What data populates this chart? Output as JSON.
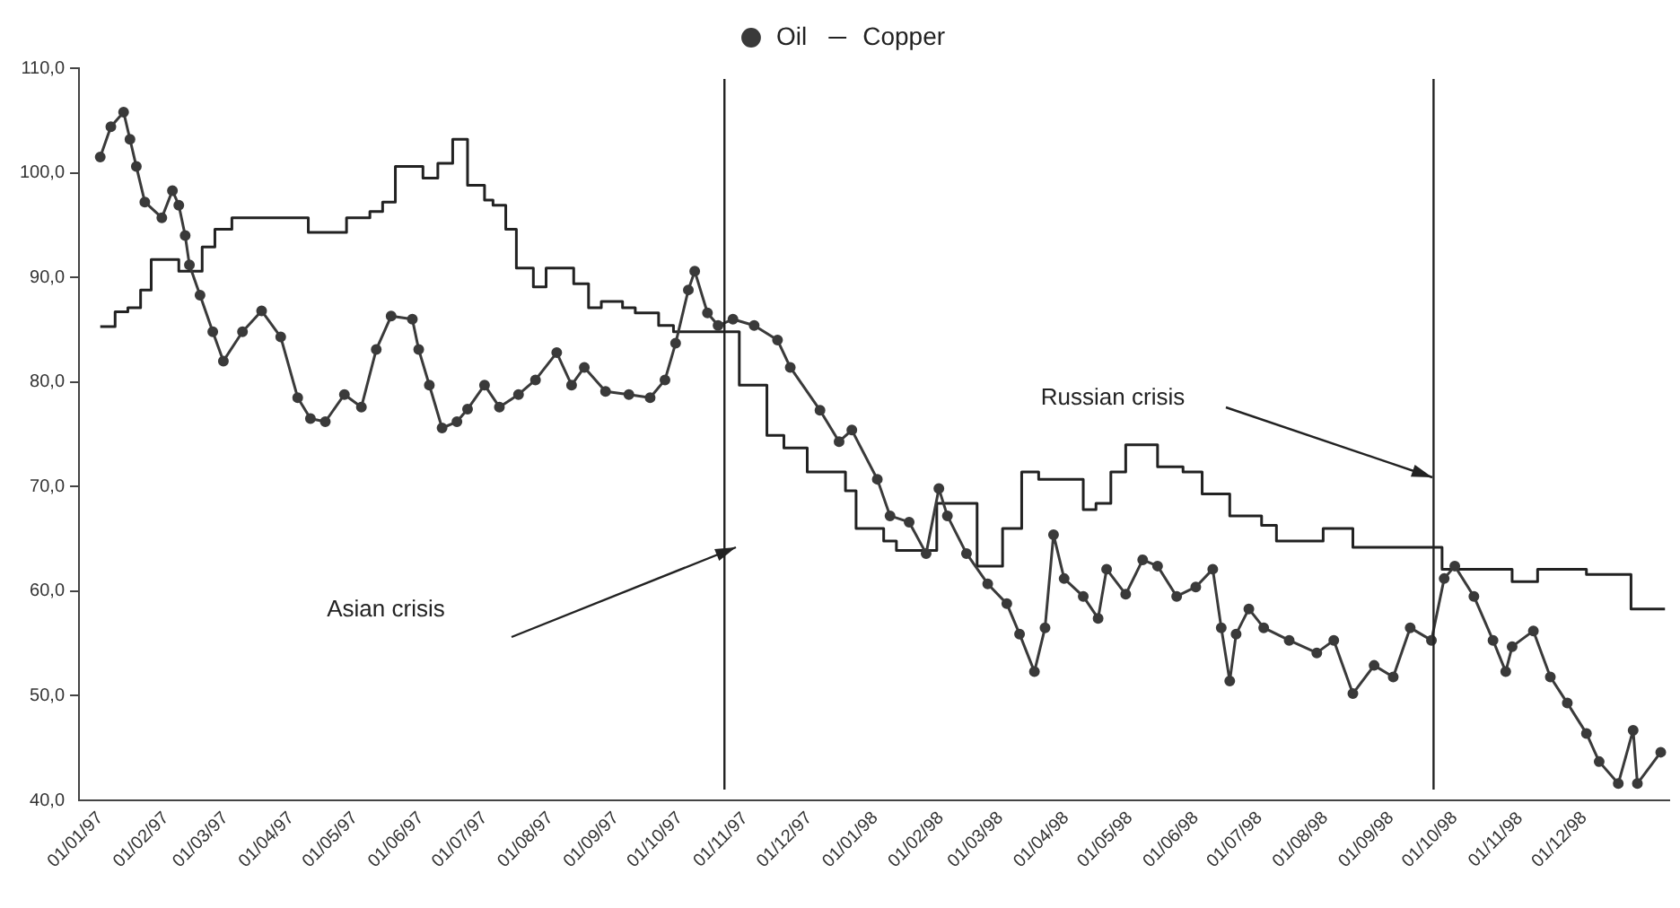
{
  "chart_data": {
    "type": "line",
    "legend": "top",
    "grid": false,
    "xlim": [
      "1997-01-01",
      "1999-01-20"
    ],
    "xticks": [
      {
        "value": "1997-01-01",
        "label": "01/01/97"
      },
      {
        "value": "1997-02-01",
        "label": "01/02/97"
      },
      {
        "value": "1997-03-01",
        "label": "01/03/97"
      },
      {
        "value": "1997-04-01",
        "label": "01/04/97"
      },
      {
        "value": "1997-05-01",
        "label": "01/05/97"
      },
      {
        "value": "1997-06-01",
        "label": "01/06/97"
      },
      {
        "value": "1997-07-01",
        "label": "01/07/97"
      },
      {
        "value": "1997-08-01",
        "label": "01/08/97"
      },
      {
        "value": "1997-09-01",
        "label": "01/09/97"
      },
      {
        "value": "1997-10-01",
        "label": "01/10/97"
      },
      {
        "value": "1997-11-01",
        "label": "01/11/97"
      },
      {
        "value": "1997-12-01",
        "label": "01/12/97"
      },
      {
        "value": "1998-01-01",
        "label": "01/01/98"
      },
      {
        "value": "1998-02-01",
        "label": "01/02/98"
      },
      {
        "value": "1998-03-01",
        "label": "01/03/98"
      },
      {
        "value": "1998-04-01",
        "label": "01/04/98"
      },
      {
        "value": "1998-05-01",
        "label": "01/05/98"
      },
      {
        "value": "1998-06-01",
        "label": "01/06/98"
      },
      {
        "value": "1998-07-01",
        "label": "01/07/98"
      },
      {
        "value": "1998-08-01",
        "label": "01/08/98"
      },
      {
        "value": "1998-09-01",
        "label": "01/09/98"
      },
      {
        "value": "1998-10-01",
        "label": "01/10/98"
      },
      {
        "value": "1998-11-01",
        "label": "01/11/98"
      },
      {
        "value": "1998-12-01",
        "label": "01/12/98"
      }
    ],
    "ylim": [
      40,
      110
    ],
    "yticks": [
      {
        "value": 40,
        "label": "40,0"
      },
      {
        "value": 50,
        "label": "50,0"
      },
      {
        "value": 60,
        "label": "60,0"
      },
      {
        "value": 70,
        "label": "70,0"
      },
      {
        "value": 80,
        "label": "80,0"
      },
      {
        "value": 90,
        "label": "90,0"
      },
      {
        "value": 100,
        "label": "100,0"
      },
      {
        "value": 110,
        "label": "110,0"
      }
    ],
    "ref_lines": [
      {
        "axis": "x",
        "value": "1997-11-01",
        "color": "#222222"
      },
      {
        "axis": "x",
        "value": "1998-10-01",
        "color": "#222222"
      }
    ],
    "annotations": [
      "Asian crisis",
      "Russian crisis"
    ],
    "series": [
      {
        "name": "Oil",
        "marker": "circle",
        "color": "#3a3a3a",
        "x": [
          "1997-01-11",
          "1997-01-16",
          "1997-01-22",
          "1997-01-25",
          "1997-01-28",
          "1997-02-01",
          "1997-02-09",
          "1997-02-14",
          "1997-02-17",
          "1997-02-20",
          "1997-02-22",
          "1997-02-27",
          "1997-03-05",
          "1997-03-10",
          "1997-03-19",
          "1997-03-28",
          "1997-04-06",
          "1997-04-14",
          "1997-04-20",
          "1997-04-27",
          "1997-05-06",
          "1997-05-14",
          "1997-05-21",
          "1997-05-28",
          "1997-06-07",
          "1997-06-10",
          "1997-06-15",
          "1997-06-21",
          "1997-06-28",
          "1997-07-03",
          "1997-07-11",
          "1997-07-18",
          "1997-07-27",
          "1997-08-04",
          "1997-08-14",
          "1997-08-21",
          "1997-08-27",
          "1997-09-06",
          "1997-09-17",
          "1997-09-27",
          "1997-10-04",
          "1997-10-09",
          "1997-10-15",
          "1997-10-18",
          "1997-10-24",
          "1997-10-29",
          "1997-11-05",
          "1997-11-15",
          "1997-11-26",
          "1997-12-02",
          "1997-12-16",
          "1997-12-25",
          "1997-12-31",
          "1998-01-12",
          "1998-01-18",
          "1998-01-27",
          "1998-02-04",
          "1998-02-10",
          "1998-02-14",
          "1998-02-23",
          "1998-03-05",
          "1998-03-14",
          "1998-03-20",
          "1998-03-27",
          "1998-04-01",
          "1998-04-05",
          "1998-04-10",
          "1998-04-19",
          "1998-04-26",
          "1998-04-30",
          "1998-05-09",
          "1998-05-17",
          "1998-05-24",
          "1998-06-02",
          "1998-06-11",
          "1998-06-19",
          "1998-06-23",
          "1998-06-27",
          "1998-06-30",
          "1998-07-06",
          "1998-07-13",
          "1998-07-25",
          "1998-08-07",
          "1998-08-15",
          "1998-08-24",
          "1998-09-03",
          "1998-09-12",
          "1998-09-20",
          "1998-09-30",
          "1998-10-06",
          "1998-10-11",
          "1998-10-20",
          "1998-10-29",
          "1998-11-04",
          "1998-11-07",
          "1998-11-17",
          "1998-11-25",
          "1998-12-03",
          "1998-12-12",
          "1998-12-18",
          "1998-12-27",
          "1999-01-03",
          "1999-01-05",
          "1999-01-16"
        ],
        "values": [
          101.5,
          104.4,
          105.8,
          103.2,
          100.6,
          97.2,
          95.7,
          98.3,
          96.9,
          94,
          91.2,
          88.3,
          84.8,
          82,
          84.8,
          86.8,
          84.3,
          78.5,
          76.5,
          76.2,
          78.8,
          77.6,
          83.1,
          86.3,
          86,
          83.1,
          79.7,
          75.6,
          76.2,
          77.4,
          79.7,
          77.6,
          78.8,
          80.2,
          82.8,
          79.7,
          81.4,
          79.1,
          78.8,
          78.5,
          80.2,
          83.7,
          88.8,
          90.6,
          86.6,
          85.4,
          86,
          85.4,
          84,
          81.4,
          77.3,
          74.3,
          75.4,
          70.7,
          67.2,
          66.6,
          63.6,
          69.8,
          67.2,
          63.6,
          60.7,
          58.8,
          55.9,
          52.3,
          56.5,
          65.4,
          61.2,
          59.5,
          57.4,
          62.1,
          59.7,
          63,
          62.4,
          59.5,
          60.4,
          62.1,
          56.5,
          51.4,
          55.9,
          58.3,
          56.5,
          55.3,
          54.1,
          55.3,
          50.2,
          52.9,
          51.8,
          56.5,
          55.3,
          61.2,
          62.4,
          59.5,
          55.3,
          52.3,
          54.7,
          56.2,
          51.8,
          49.3,
          46.4,
          43.7,
          41.6,
          46.7,
          41.6,
          44.6
        ]
      },
      {
        "name": "Copper",
        "type": "step",
        "marker": "none",
        "color": "#222222",
        "x": [
          "1997-01-11",
          "1997-01-18",
          "1997-01-24",
          "1997-01-30",
          "1997-02-04",
          "1997-02-17",
          "1997-02-28",
          "1997-03-06",
          "1997-03-14",
          "1997-04-19",
          "1997-05-07",
          "1997-05-18",
          "1997-05-24",
          "1997-05-30",
          "1997-06-12",
          "1997-06-19",
          "1997-06-26",
          "1997-07-03",
          "1997-07-11",
          "1997-07-15",
          "1997-07-21",
          "1997-07-26",
          "1997-08-03",
          "1997-08-09",
          "1997-08-22",
          "1997-08-29",
          "1997-09-04",
          "1997-09-14",
          "1997-09-20",
          "1997-10-01",
          "1997-10-08",
          "1997-11-08",
          "1997-11-21",
          "1997-11-29",
          "1997-12-10",
          "1997-12-28",
          "1998-01-02",
          "1998-01-15",
          "1998-01-21",
          "1998-02-09",
          "1998-02-28",
          "1998-03-12",
          "1998-03-21",
          "1998-03-29",
          "1998-04-19",
          "1998-04-25",
          "1998-05-02",
          "1998-05-09",
          "1998-05-24",
          "1998-06-05",
          "1998-06-14",
          "1998-06-27",
          "1998-07-12",
          "1998-07-19",
          "1998-08-10",
          "1998-08-24",
          "1998-10-05",
          "1998-11-07",
          "1998-11-19",
          "1998-12-12",
          "1999-01-02",
          "1999-01-18"
        ],
        "values": [
          85.3,
          86.7,
          87.1,
          88.8,
          91.7,
          90.6,
          92.9,
          94.6,
          95.7,
          94.3,
          95.7,
          96.3,
          97.2,
          100.6,
          99.5,
          100.9,
          103.2,
          98.8,
          97.4,
          96.9,
          94.6,
          90.9,
          89.1,
          90.9,
          89.4,
          87.1,
          87.7,
          87.1,
          86.6,
          85.4,
          84.8,
          79.7,
          74.9,
          73.7,
          71.4,
          69.6,
          66,
          64.8,
          63.9,
          68.4,
          62.4,
          66,
          71.4,
          70.7,
          67.8,
          68.4,
          71.4,
          74,
          71.9,
          71.4,
          69.3,
          67.2,
          66.3,
          64.8,
          66,
          64.2,
          62.1,
          60.9,
          62.1,
          61.6,
          58.3,
          58.3
        ]
      }
    ]
  }
}
